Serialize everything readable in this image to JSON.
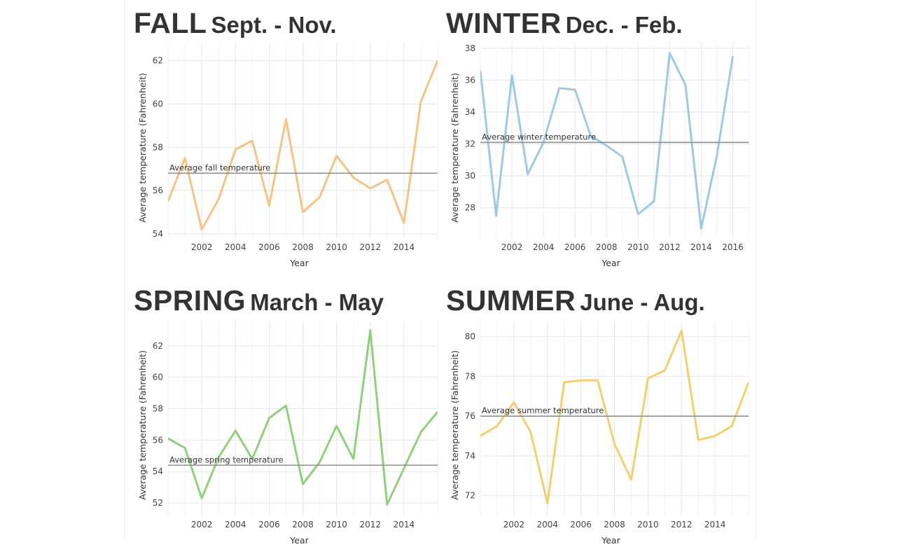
{
  "chart_data": [
    {
      "type": "line",
      "season": "FALL",
      "months": "Sept. - Nov.",
      "xlabel": "Year",
      "ylabel": "Average temperature (Fahrenheit)",
      "xlim": [
        2000,
        2016
      ],
      "ylim": [
        53.8,
        62.8
      ],
      "xticks": [
        2002,
        2004,
        2006,
        2008,
        2010,
        2012,
        2014
      ],
      "yticks": [
        54,
        56,
        58,
        60,
        62
      ],
      "color": "#f5c283",
      "average_label": "Average fall temperature",
      "average_value": 56.8,
      "x": [
        2000,
        2001,
        2002,
        2003,
        2004,
        2005,
        2006,
        2007,
        2008,
        2009,
        2010,
        2011,
        2012,
        2013,
        2014,
        2015,
        2016
      ],
      "values": [
        55.5,
        57.5,
        54.2,
        55.6,
        57.9,
        58.3,
        55.3,
        59.3,
        55.0,
        55.7,
        57.6,
        56.6,
        56.1,
        56.5,
        54.5,
        60.1,
        62.0
      ],
      "grid": true
    },
    {
      "type": "line",
      "season": "WINTER",
      "months": "Dec. - Feb.",
      "xlabel": "Year",
      "ylabel": "Average temperature (Fahrenheit)",
      "xlim": [
        2000,
        2017
      ],
      "ylim": [
        26.1,
        38.3
      ],
      "xticks": [
        2002,
        2004,
        2006,
        2008,
        2010,
        2012,
        2014,
        2016
      ],
      "yticks": [
        28,
        30,
        32,
        34,
        36,
        38
      ],
      "color": "#9ecae1",
      "average_label": "Average winter temperature",
      "average_value": 32.1,
      "x": [
        2000,
        2001,
        2002,
        2003,
        2004,
        2005,
        2006,
        2007,
        2008,
        2009,
        2010,
        2011,
        2012,
        2013,
        2014,
        2015,
        2016
      ],
      "values": [
        36.6,
        27.5,
        36.3,
        30.1,
        32.1,
        35.5,
        35.4,
        32.5,
        31.9,
        31.2,
        27.6,
        28.4,
        37.7,
        35.7,
        26.7,
        31.3,
        37.5
      ],
      "grid": true
    },
    {
      "type": "line",
      "season": "SPRING",
      "months": "March - May",
      "xlabel": "Year",
      "ylabel": "Average temperature (Fahrenheit)",
      "xlim": [
        2000,
        2016
      ],
      "ylim": [
        51.2,
        63.6
      ],
      "xticks": [
        2002,
        2004,
        2006,
        2008,
        2010,
        2012,
        2014
      ],
      "yticks": [
        52,
        54,
        56,
        58,
        60,
        62
      ],
      "color": "#8fd07a",
      "average_label": "Average spring temperature",
      "average_value": 54.4,
      "x": [
        2000,
        2001,
        2002,
        2003,
        2004,
        2005,
        2006,
        2007,
        2008,
        2009,
        2010,
        2011,
        2012,
        2013,
        2014,
        2015,
        2016
      ],
      "values": [
        56.1,
        55.5,
        52.3,
        54.9,
        56.6,
        54.8,
        57.4,
        58.2,
        53.2,
        54.6,
        56.9,
        54.8,
        63.0,
        51.9,
        54.2,
        56.5,
        57.8
      ],
      "grid": true
    },
    {
      "type": "line",
      "season": "SUMMER",
      "months": "June - Aug.",
      "xlabel": "Year",
      "ylabel": "Average temperature (Fahrenheit)",
      "xlim": [
        2000,
        2016
      ],
      "ylim": [
        71.0,
        80.8
      ],
      "xticks": [
        2002,
        2004,
        2006,
        2008,
        2010,
        2012,
        2014
      ],
      "yticks": [
        72,
        74,
        76,
        78,
        80
      ],
      "color": "#f0d06e",
      "average_label": "Average summer temperature",
      "average_value": 76.0,
      "x": [
        2000,
        2001,
        2002,
        2003,
        2004,
        2005,
        2006,
        2007,
        2008,
        2009,
        2010,
        2011,
        2012,
        2013,
        2014,
        2015,
        2016
      ],
      "values": [
        75.0,
        75.5,
        76.7,
        75.2,
        71.6,
        77.7,
        77.8,
        77.8,
        74.6,
        72.8,
        77.9,
        78.3,
        80.3,
        74.8,
        75.0,
        75.5,
        77.7
      ],
      "grid": true
    }
  ]
}
